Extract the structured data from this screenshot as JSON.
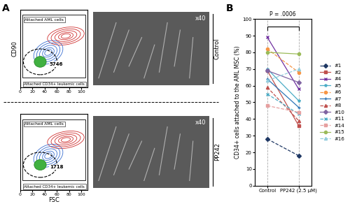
{
  "panel_labels": [
    "A",
    "B"
  ],
  "panel_a": {
    "x_label": "FSC",
    "y_label": "CD90",
    "xlim": [
      0,
      110
    ],
    "xticks": [
      0,
      20,
      40,
      60,
      80,
      100
    ],
    "ylim": [
      0,
      100
    ],
    "tick_labels": "x",
    "gates": [
      "Attached AML cells",
      "Attached CD34+ leukemic cells"
    ],
    "rows": [
      {
        "condition": "Control",
        "magnification": "x40",
        "cd34_count": 5746
      },
      {
        "condition": "PP242",
        "magnification": "x40",
        "cd34_count": 1718
      }
    ]
  },
  "chart_data": {
    "type": "line",
    "y_label": "CD34+ cells attached to the AML MSC (%)",
    "categories": [
      "Control",
      "PP242 (2.5 µM)"
    ],
    "ylim": [
      0,
      100
    ],
    "yticks": [
      0,
      10,
      20,
      30,
      40,
      50,
      60,
      70,
      80,
      90,
      100
    ],
    "grid": "x",
    "legend": "right",
    "annotations": [
      "P = .0006"
    ],
    "series": [
      {
        "name": "#1",
        "color": "#1f3864",
        "marker": "diamond",
        "line_style": "dashed",
        "values": [
          28,
          18
        ]
      },
      {
        "name": "#2",
        "color": "#c0504d",
        "marker": "square",
        "line_style": "solid",
        "values": [
          69,
          36
        ]
      },
      {
        "name": "#4",
        "color": "#7030a0",
        "marker": "x",
        "line_style": "solid",
        "values": [
          89,
          58
        ]
      },
      {
        "name": "#5",
        "color": "#4bacc6",
        "marker": "star",
        "line_style": "solid",
        "values": [
          70,
          51
        ]
      },
      {
        "name": "#6",
        "color": "#f79646",
        "marker": "circle",
        "line_style": "dashed",
        "values": [
          82,
          68
        ]
      },
      {
        "name": "#7",
        "color": "#2e75b6",
        "marker": "plus",
        "line_style": "solid",
        "values": [
          64,
          47
        ]
      },
      {
        "name": "#8",
        "color": "#c0504d",
        "marker": "triangle",
        "line_style": "dashed",
        "values": [
          59,
          39
        ]
      },
      {
        "name": "#10",
        "color": "#8064a2",
        "marker": "diamond",
        "line_style": "solid",
        "values": [
          69,
          62
        ]
      },
      {
        "name": "#11",
        "color": "#4bacc6",
        "marker": "x",
        "line_style": "dashed",
        "values": [
          55,
          43
        ]
      },
      {
        "name": "#14",
        "color": "#e6a0a0",
        "marker": "square",
        "line_style": "dashed",
        "values": [
          48,
          44
        ]
      },
      {
        "name": "#15",
        "color": "#9bbb59",
        "marker": "circle",
        "line_style": "solid",
        "values": [
          80,
          79
        ]
      },
      {
        "name": "#16",
        "color": "#93cddd",
        "marker": "triangle",
        "line_style": "dashed",
        "values": [
          63,
          70
        ]
      }
    ]
  }
}
